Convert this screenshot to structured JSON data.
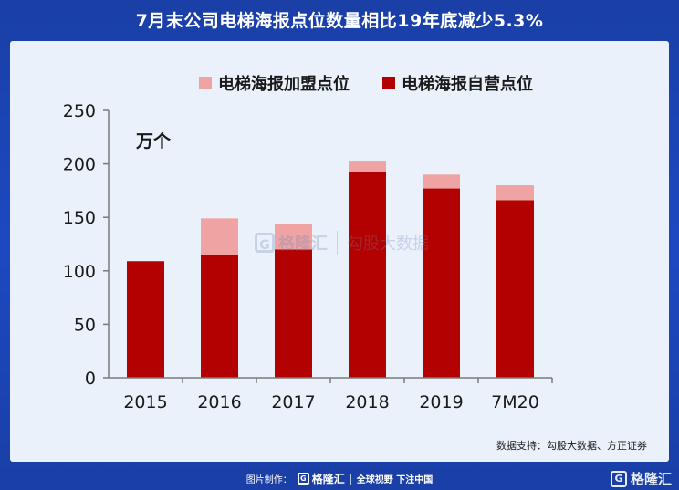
{
  "title": "7月末公司电梯海报点位数量相比19年底减少5.3%",
  "source_note": "数据支持：勾股大数据、方正证券",
  "watermark": {
    "logo_glyph": "G",
    "brand": "格隆汇",
    "site": "勾股大数据"
  },
  "footer": {
    "made_by_label": "图片制作：",
    "logo_glyph": "G",
    "logo_text": "格隆汇",
    "slogan": "全球视野 下注中国",
    "brand_glyph": "G",
    "brand_text": "格隆汇"
  },
  "colors": {
    "self_operated": "#b30000",
    "franchise": "#f0a3a3",
    "panel": "#eaf1fb",
    "background": "#1c49c2"
  },
  "chart_data": {
    "type": "bar",
    "stacked": true,
    "unit": "万个",
    "categories": [
      "2015",
      "2016",
      "2017",
      "2018",
      "2019",
      "7M20"
    ],
    "series": [
      {
        "name": "电梯海报自营点位",
        "color": "#b30000",
        "values": [
          109,
          115,
          120,
          193,
          177,
          166
        ]
      },
      {
        "name": "电梯海报加盟点位",
        "color": "#f0a3a3",
        "values": [
          0,
          34,
          24,
          10,
          13,
          14
        ]
      }
    ],
    "ylim": [
      0,
      250
    ],
    "yticks": [
      0,
      50,
      100,
      150,
      200,
      250
    ],
    "legend_order": [
      "电梯海报加盟点位",
      "电梯海报自营点位"
    ],
    "legend_position": "top"
  }
}
